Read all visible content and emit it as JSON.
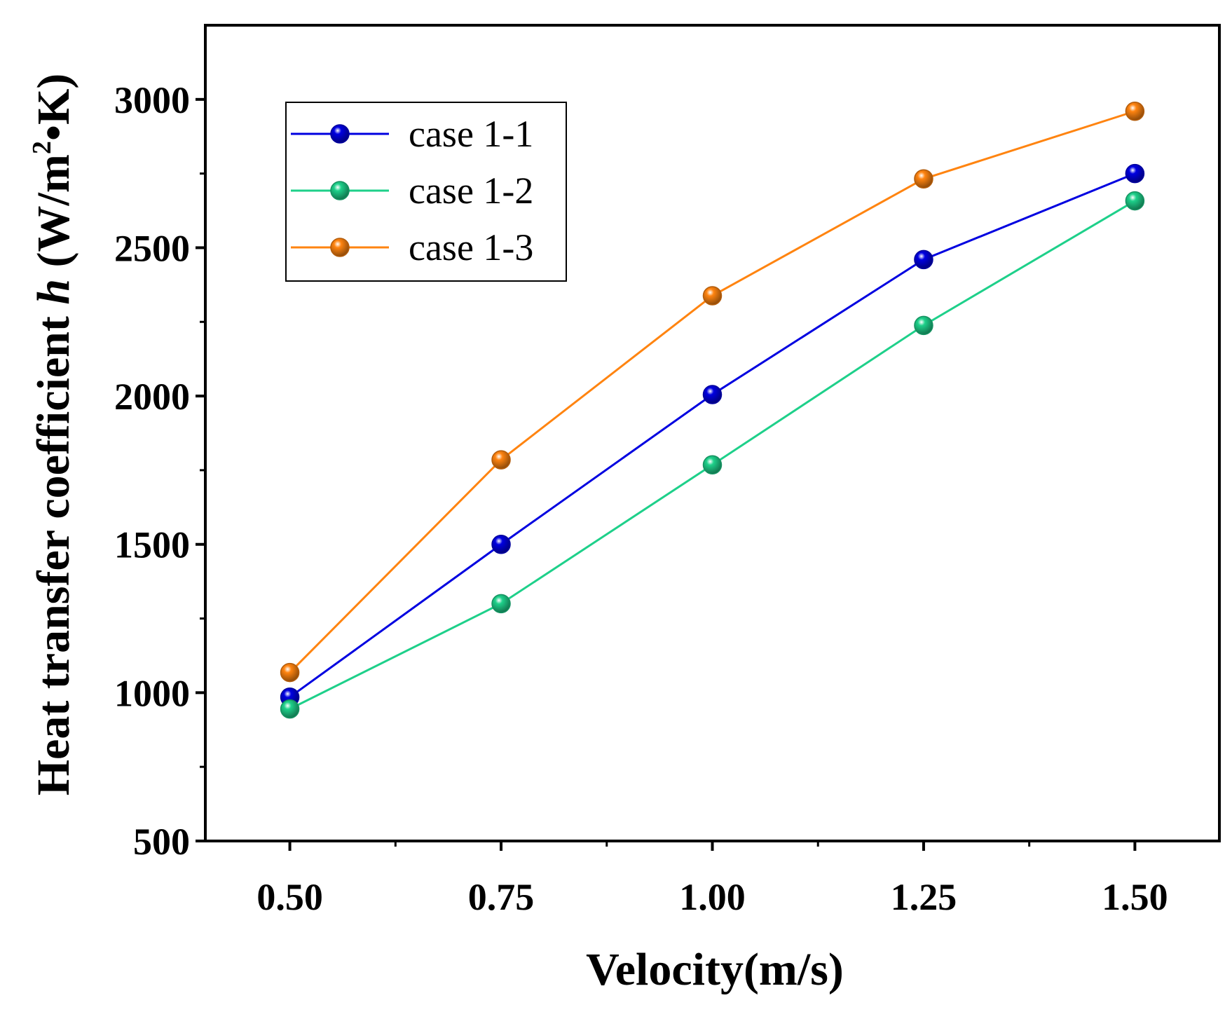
{
  "chart_data": {
    "type": "line",
    "title": "",
    "xlabel": "Velocity(m/s)",
    "ylabel": {
      "prefix": "Heat transfer coefficient ",
      "symbol": "h",
      "unit_open": " (W/m",
      "unit_sup": "2",
      "unit_close": "•K)"
    },
    "x": [
      0.5,
      0.75,
      1.0,
      1.25,
      1.5
    ],
    "xlim": [
      0.4,
      1.6
    ],
    "ylim": [
      500,
      3250
    ],
    "x_ticks": [
      0.5,
      0.75,
      1.0,
      1.25,
      1.5
    ],
    "x_tick_labels": [
      "0.50",
      "0.75",
      "1.00",
      "1.25",
      "1.50"
    ],
    "x_minor_ticks": [
      0.625,
      0.875,
      1.125,
      1.375
    ],
    "y_ticks": [
      500,
      1000,
      1500,
      2000,
      2500,
      3000
    ],
    "y_tick_labels": [
      "500",
      "1000",
      "1500",
      "2000",
      "2500",
      "3000"
    ],
    "y_minor_ticks": [
      750,
      1250,
      1750,
      2250,
      2750
    ],
    "grid": false,
    "legend_position": "top-left",
    "series": [
      {
        "name": "case 1-1",
        "color": "#0000e0",
        "values": [
          985,
          1500,
          2005,
          2460,
          2750
        ]
      },
      {
        "name": "case 1-2",
        "color": "#1ed08a",
        "values": [
          945,
          1300,
          1768,
          2238,
          2658
        ]
      },
      {
        "name": "case 1-3",
        "color": "#ff8410",
        "values": [
          1068,
          1785,
          2338,
          2732,
          2960
        ]
      }
    ]
  }
}
